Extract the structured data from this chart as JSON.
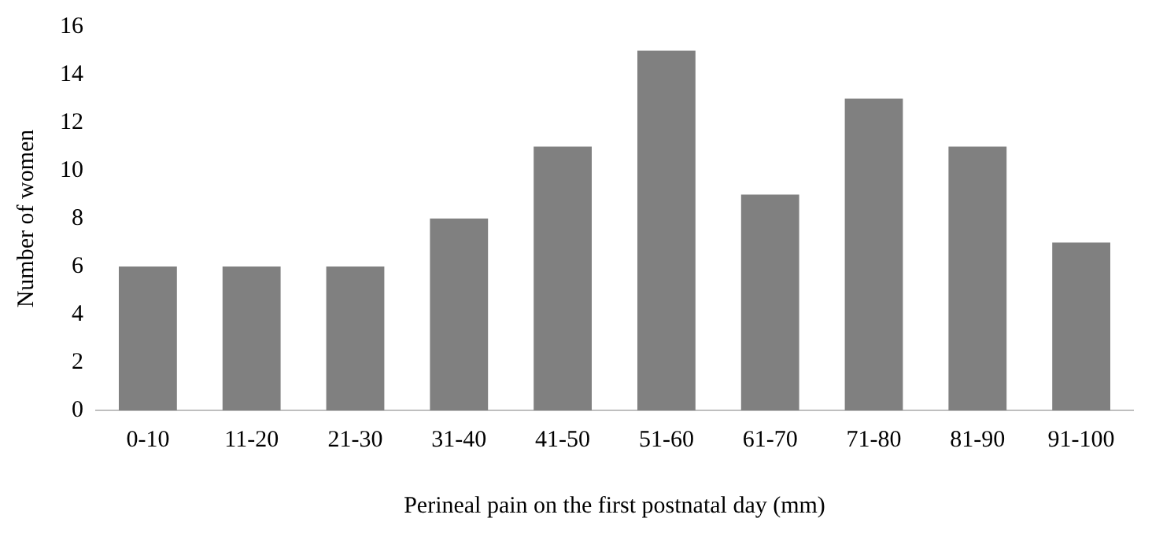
{
  "chart_data": {
    "type": "bar",
    "xlabel": "Perineal pain on the first postnatal day (mm)",
    "ylabel": "Number of women",
    "categories": [
      "0-10",
      "11-20",
      "21-30",
      "31-40",
      "41-50",
      "51-60",
      "61-70",
      "71-80",
      "81-90",
      "91-100"
    ],
    "values": [
      6,
      6,
      6,
      8,
      11,
      15,
      9,
      13,
      11,
      7
    ],
    "color": "#808080",
    "ylim": [
      0,
      16
    ],
    "yticks": [
      0,
      2,
      4,
      6,
      8,
      10,
      12,
      14,
      16
    ],
    "grid": false,
    "legend": false
  }
}
